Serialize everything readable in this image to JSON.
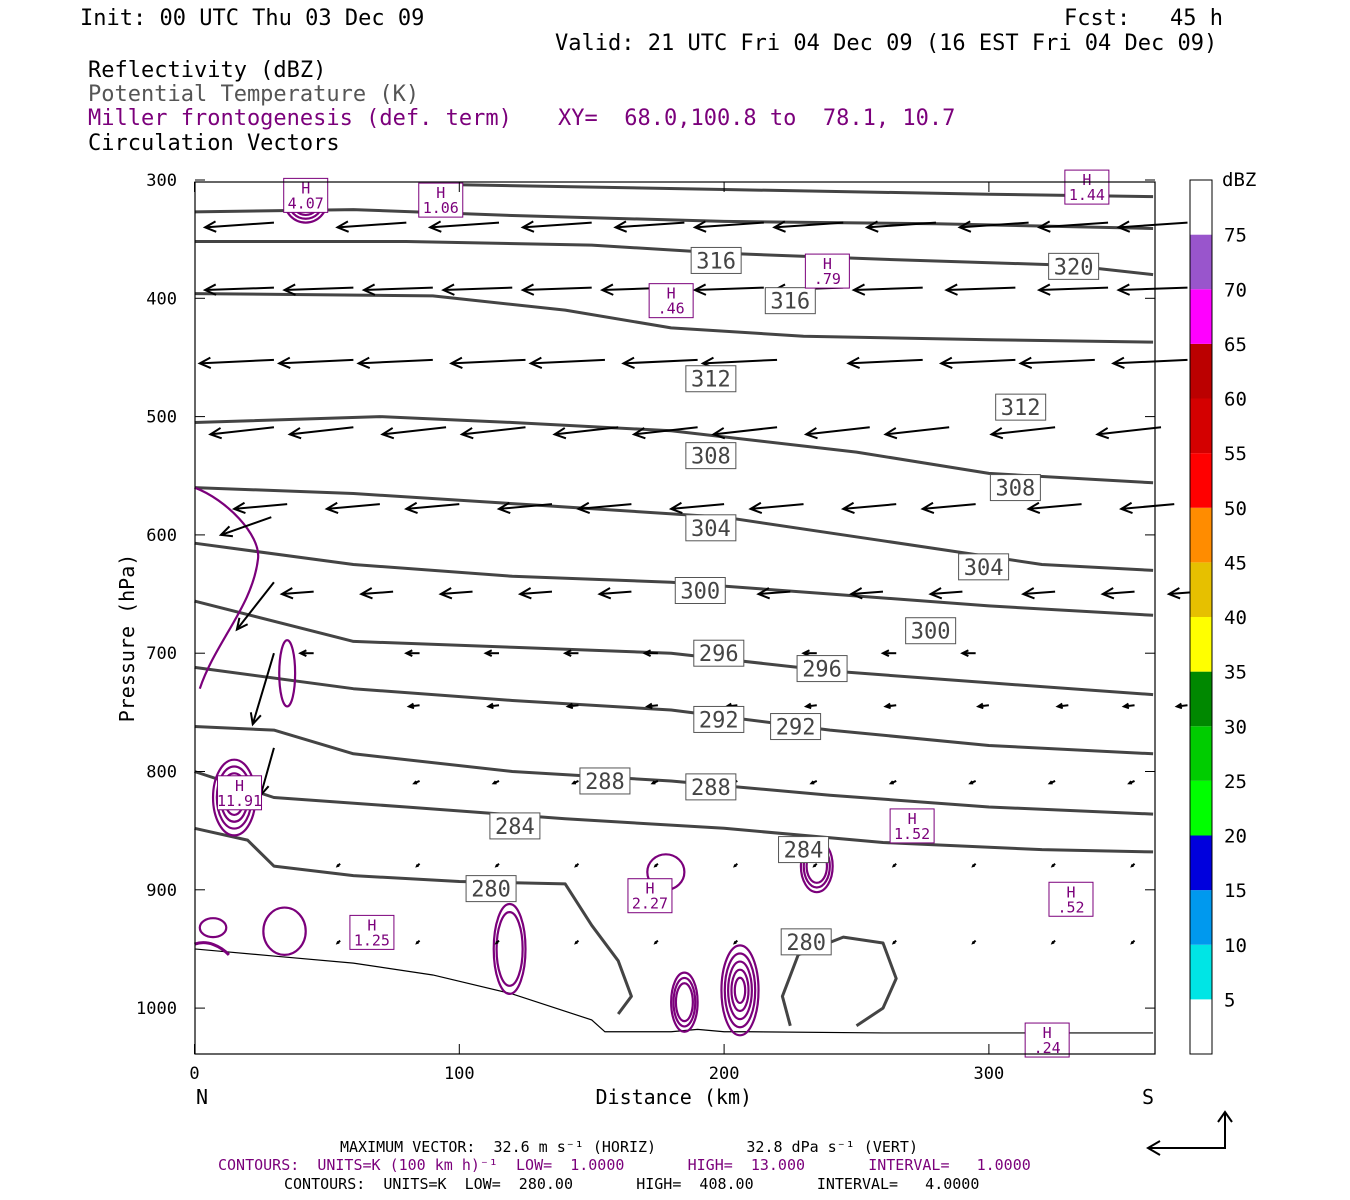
{
  "header": {
    "init": "Init: 00 UTC Thu 03 Dec 09",
    "fcst": "Fcst:   45 h",
    "valid": "Valid: 21 UTC Fri 04 Dec 09 (16 EST Fri 04 Dec 09)",
    "field1": "Reflectivity (dBZ)",
    "field2": "Potential Temperature (K)",
    "field3": "Miller frontogenesis (def. term)",
    "xy": "XY=  68.0,100.8 to  78.1, 10.7",
    "field4": "Circulation Vectors"
  },
  "colors": {
    "theta": "#444444",
    "fronto": "#7b007b",
    "vector": "#000000"
  },
  "chart_data": {
    "type": "cross-section",
    "xlabel": "Distance (km)",
    "ylabel": "Pressure (hPa)",
    "xlim": [
      0,
      362
    ],
    "ylim": [
      1040,
      300
    ],
    "x_ticks": [
      0,
      100,
      200,
      300
    ],
    "y_ticks": [
      300,
      400,
      500,
      600,
      700,
      800,
      900,
      1000
    ],
    "end_labels": {
      "left": "N",
      "right": "S"
    },
    "theta_contour_labels": [
      {
        "value": "320",
        "x": 332,
        "p": 373
      },
      {
        "value": "316",
        "x": 197,
        "p": 368
      },
      {
        "value": "316",
        "x": 225,
        "p": 402
      },
      {
        "value": "312",
        "x": 195,
        "p": 468
      },
      {
        "value": "312",
        "x": 312,
        "p": 492
      },
      {
        "value": "308",
        "x": 195,
        "p": 533
      },
      {
        "value": "308",
        "x": 310,
        "p": 560
      },
      {
        "value": "304",
        "x": 195,
        "p": 594
      },
      {
        "value": "304",
        "x": 298,
        "p": 627
      },
      {
        "value": "300",
        "x": 191,
        "p": 647
      },
      {
        "value": "300",
        "x": 278,
        "p": 681
      },
      {
        "value": "296",
        "x": 198,
        "p": 700
      },
      {
        "value": "296",
        "x": 237,
        "p": 713
      },
      {
        "value": "292",
        "x": 198,
        "p": 756
      },
      {
        "value": "292",
        "x": 227,
        "p": 762
      },
      {
        "value": "288",
        "x": 155,
        "p": 808
      },
      {
        "value": "288",
        "x": 195,
        "p": 813
      },
      {
        "value": "284",
        "x": 121,
        "p": 846
      },
      {
        "value": "284",
        "x": 230,
        "p": 866
      },
      {
        "value": "280",
        "x": 112,
        "p": 899
      },
      {
        "value": "280",
        "x": 231,
        "p": 944
      }
    ],
    "fronto_maxima": [
      {
        "label": "H",
        "value": "4.07",
        "x": 42,
        "p": 313
      },
      {
        "label": "H",
        "value": "1.06",
        "x": 93,
        "p": 317
      },
      {
        "label": "H",
        "value": "1.44",
        "x": 337,
        "p": 306
      },
      {
        "label": "H",
        "value": ".79",
        "x": 239,
        "p": 377
      },
      {
        "label": "H",
        "value": ".46",
        "x": 180,
        "p": 402
      },
      {
        "label": "H",
        "value": "11.91",
        "x": 17,
        "p": 818
      },
      {
        "label": "H",
        "value": "1.52",
        "x": 271,
        "p": 846
      },
      {
        "label": "H",
        "value": "2.27",
        "x": 172,
        "p": 905
      },
      {
        "label": "H",
        "value": ".52",
        "x": 331,
        "p": 908
      },
      {
        "label": "H",
        "value": "1.25",
        "x": 67,
        "p": 936
      },
      {
        "label": "H",
        "value": ".24",
        "x": 322,
        "p": 1027
      }
    ],
    "colorbar": {
      "title": "dBZ",
      "levels": [
        "5",
        "10",
        "15",
        "20",
        "25",
        "30",
        "35",
        "40",
        "45",
        "50",
        "55",
        "60",
        "65",
        "70",
        "75"
      ],
      "colors": [
        "#ffffff",
        "#00e5e5",
        "#0099ee",
        "#0000dd",
        "#00ff00",
        "#00cc00",
        "#008800",
        "#ffff00",
        "#e6c000",
        "#ff8c00",
        "#ff0000",
        "#d40000",
        "#bb0000",
        "#ff00ff",
        "#9955cc",
        "#ffffff"
      ]
    }
  },
  "footer": {
    "maxvec": "MAXIMUM VECTOR:  32.6 m s⁻¹ (HORIZ)          32.8 dPa s⁻¹ (VERT)",
    "line2": "CONTOURS:  UNITS=K (100 km h)⁻¹  LOW=  1.0000       HIGH=  13.000       INTERVAL=   1.0000",
    "line3": "CONTOURS:  UNITS=K  LOW=  280.00       HIGH=  408.00       INTERVAL=   4.0000"
  }
}
